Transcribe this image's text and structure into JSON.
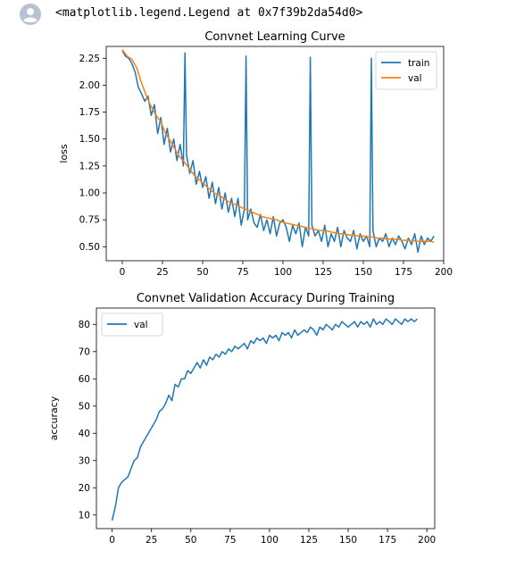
{
  "cell": {
    "avatar_icon": "user-avatar-icon",
    "output_text": "<matplotlib.legend.Legend at 0x7f39b2da54d0>"
  },
  "chart_data": [
    {
      "type": "line",
      "title": "Convnet Learning Curve",
      "xlabel": "",
      "ylabel": "loss",
      "xlim": [
        -10,
        200
      ],
      "ylim": [
        0.37,
        2.36
      ],
      "xticks": [
        0,
        25,
        50,
        75,
        100,
        125,
        150,
        175,
        200
      ],
      "xtick_labels": [
        "0",
        "25",
        "50",
        "75",
        "100",
        "125",
        "150",
        "175",
        "200"
      ],
      "yticks": [
        0.5,
        0.75,
        1.0,
        1.25,
        1.5,
        1.75,
        2.0,
        2.25
      ],
      "ytick_labels": [
        "0.50",
        "0.75",
        "1.00",
        "1.25",
        "1.50",
        "1.75",
        "2.00",
        "2.25"
      ],
      "legend": "top-right",
      "colors": {
        "train": "#1f77b4",
        "val": "#ff7f0e"
      },
      "series": [
        {
          "name": "train",
          "color": "#1f77b4",
          "x": [
            0,
            2,
            4,
            6,
            8,
            10,
            12,
            14,
            16,
            18,
            20,
            22,
            24,
            26,
            28,
            30,
            32,
            34,
            36,
            38,
            39,
            40,
            42,
            44,
            46,
            48,
            50,
            52,
            54,
            56,
            58,
            60,
            62,
            64,
            66,
            68,
            70,
            72,
            74,
            76,
            77,
            78,
            80,
            82,
            84,
            86,
            88,
            90,
            92,
            94,
            96,
            98,
            100,
            102,
            104,
            106,
            108,
            110,
            112,
            114,
            116,
            117,
            118,
            120,
            122,
            124,
            126,
            128,
            130,
            132,
            134,
            136,
            138,
            140,
            142,
            144,
            146,
            148,
            150,
            152,
            154,
            155,
            156,
            158,
            160,
            162,
            164,
            166,
            168,
            170,
            172,
            174,
            176,
            178,
            180,
            182,
            184,
            186,
            188,
            190,
            192,
            194
          ],
          "y": [
            2.32,
            2.27,
            2.25,
            2.2,
            2.12,
            1.98,
            1.92,
            1.85,
            1.9,
            1.72,
            1.82,
            1.55,
            1.7,
            1.45,
            1.6,
            1.38,
            1.5,
            1.3,
            1.45,
            1.25,
            2.3,
            1.35,
            1.18,
            1.3,
            1.08,
            1.2,
            1.05,
            1.15,
            0.95,
            1.1,
            0.9,
            1.05,
            0.85,
            1.0,
            0.82,
            0.95,
            0.78,
            0.95,
            0.7,
            0.85,
            2.27,
            0.75,
            0.85,
            0.72,
            0.68,
            0.8,
            0.65,
            0.75,
            0.62,
            0.78,
            0.6,
            0.72,
            0.75,
            0.68,
            0.55,
            0.7,
            0.62,
            0.72,
            0.5,
            0.68,
            0.6,
            2.26,
            0.7,
            0.6,
            0.65,
            0.55,
            0.7,
            0.5,
            0.62,
            0.55,
            0.68,
            0.5,
            0.65,
            0.58,
            0.55,
            0.65,
            0.48,
            0.62,
            0.55,
            0.6,
            0.5,
            2.25,
            0.65,
            0.5,
            0.58,
            0.55,
            0.62,
            0.5,
            0.58,
            0.52,
            0.6,
            0.55,
            0.48,
            0.58,
            0.52,
            0.62,
            0.45,
            0.6,
            0.52,
            0.58,
            0.55,
            0.6
          ]
        },
        {
          "name": "val",
          "color": "#ff7f0e",
          "x": [
            0,
            3,
            6,
            9,
            12,
            15,
            18,
            21,
            24,
            27,
            30,
            33,
            36,
            39,
            42,
            45,
            48,
            51,
            54,
            57,
            60,
            63,
            66,
            69,
            72,
            75,
            78,
            81,
            84,
            87,
            90,
            93,
            96,
            99,
            102,
            105,
            108,
            111,
            114,
            117,
            120,
            123,
            126,
            129,
            132,
            135,
            138,
            141,
            144,
            147,
            150,
            153,
            156,
            159,
            162,
            165,
            168,
            171,
            174,
            177,
            180,
            183,
            186,
            189,
            192,
            194
          ],
          "y": [
            2.33,
            2.27,
            2.24,
            2.16,
            2.02,
            1.9,
            1.8,
            1.72,
            1.66,
            1.55,
            1.48,
            1.4,
            1.33,
            1.28,
            1.22,
            1.16,
            1.12,
            1.08,
            1.04,
            1.0,
            0.98,
            0.95,
            0.92,
            0.9,
            0.88,
            0.86,
            0.84,
            0.82,
            0.8,
            0.78,
            0.77,
            0.76,
            0.75,
            0.73,
            0.72,
            0.71,
            0.7,
            0.69,
            0.68,
            0.67,
            0.66,
            0.65,
            0.65,
            0.64,
            0.63,
            0.62,
            0.62,
            0.61,
            0.61,
            0.6,
            0.6,
            0.59,
            0.59,
            0.58,
            0.58,
            0.57,
            0.57,
            0.57,
            0.56,
            0.56,
            0.56,
            0.55,
            0.55,
            0.55,
            0.55,
            0.54
          ]
        }
      ]
    },
    {
      "type": "line",
      "title": "Convnet Validation Accuracy During Training",
      "xlabel": "",
      "ylabel": "accuracy",
      "xlim": [
        -10,
        205
      ],
      "ylim": [
        5,
        86
      ],
      "xticks": [
        0,
        25,
        50,
        75,
        100,
        125,
        150,
        175,
        200
      ],
      "xtick_labels": [
        "0",
        "25",
        "50",
        "75",
        "100",
        "125",
        "150",
        "175",
        "200"
      ],
      "yticks": [
        10,
        20,
        30,
        40,
        50,
        60,
        70,
        80
      ],
      "ytick_labels": [
        "10",
        "20",
        "30",
        "40",
        "50",
        "60",
        "70",
        "80"
      ],
      "legend": "top-left",
      "colors": {
        "val": "#1f77b4"
      },
      "series": [
        {
          "name": "val",
          "color": "#1f77b4",
          "x": [
            0,
            2,
            4,
            6,
            8,
            10,
            12,
            14,
            16,
            18,
            20,
            22,
            24,
            26,
            28,
            30,
            32,
            34,
            36,
            38,
            40,
            42,
            44,
            46,
            48,
            50,
            52,
            54,
            56,
            58,
            60,
            62,
            64,
            66,
            68,
            70,
            72,
            74,
            76,
            78,
            80,
            82,
            84,
            86,
            88,
            90,
            92,
            94,
            96,
            98,
            100,
            102,
            104,
            106,
            108,
            110,
            112,
            114,
            116,
            118,
            120,
            122,
            124,
            126,
            128,
            130,
            132,
            134,
            136,
            138,
            140,
            142,
            144,
            146,
            148,
            150,
            152,
            154,
            156,
            158,
            160,
            162,
            164,
            166,
            168,
            170,
            172,
            174,
            176,
            178,
            180,
            182,
            184,
            186,
            188,
            190,
            192,
            194
          ],
          "y": [
            8,
            13,
            20,
            22,
            23,
            24,
            27,
            30,
            31,
            35,
            37,
            39,
            41,
            43,
            45,
            48,
            49,
            51,
            54,
            52,
            58,
            57,
            60,
            60,
            63,
            62,
            64,
            66,
            64,
            67,
            65,
            68,
            67,
            69,
            68,
            70,
            69,
            71,
            70,
            72,
            71,
            72,
            73,
            71,
            74,
            73,
            75,
            74,
            75,
            73,
            76,
            75,
            76,
            74,
            77,
            76,
            77,
            75,
            78,
            76,
            77,
            78,
            77,
            79,
            78,
            76,
            79,
            78,
            80,
            79,
            78,
            80,
            79,
            81,
            80,
            79,
            80,
            81,
            79,
            81,
            80,
            81,
            79,
            82,
            80,
            81,
            80,
            82,
            81,
            80,
            82,
            81,
            80,
            82,
            81,
            82,
            81,
            82
          ]
        }
      ]
    }
  ]
}
